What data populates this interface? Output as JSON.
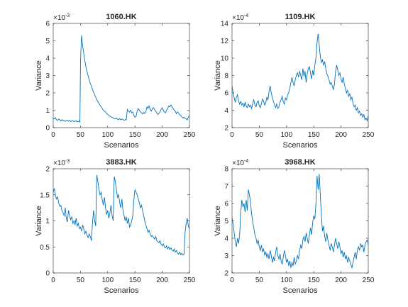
{
  "chart_data": [
    {
      "type": "line",
      "title": "1060.HK",
      "xlabel": "Scenarios",
      "ylabel": "Variance",
      "exponent": "-3",
      "xlim": [
        0,
        250
      ],
      "ylim": [
        0,
        6
      ],
      "xticks": [
        0,
        50,
        100,
        150,
        200,
        250
      ],
      "yticks": [
        0,
        1,
        2,
        3,
        4,
        5,
        6
      ],
      "color": "#0072BD",
      "x": [
        0,
        2,
        4,
        6,
        8,
        10,
        12,
        14,
        16,
        18,
        20,
        22,
        24,
        26,
        28,
        30,
        32,
        34,
        36,
        38,
        40,
        42,
        44,
        46,
        48,
        49,
        50,
        51,
        52,
        53,
        54,
        55,
        56,
        57,
        58,
        59,
        60,
        62,
        64,
        66,
        68,
        70,
        72,
        74,
        76,
        78,
        80,
        82,
        84,
        86,
        88,
        90,
        92,
        94,
        96,
        98,
        100,
        102,
        104,
        106,
        108,
        110,
        112,
        114,
        116,
        118,
        120,
        122,
        124,
        126,
        128,
        130,
        132,
        134,
        136,
        138,
        140,
        142,
        144,
        146,
        148,
        150,
        152,
        154,
        156,
        158,
        160,
        162,
        164,
        166,
        168,
        170,
        172,
        174,
        176,
        178,
        180,
        182,
        184,
        186,
        188,
        190,
        192,
        194,
        196,
        198,
        200,
        202,
        204,
        206,
        208,
        210,
        212,
        214,
        216,
        218,
        220,
        222,
        224,
        226,
        228,
        230,
        232,
        234,
        236,
        238,
        240,
        242,
        244,
        246,
        248,
        250
      ],
      "values": [
        0.55,
        0.5,
        0.58,
        0.45,
        0.42,
        0.5,
        0.44,
        0.38,
        0.46,
        0.4,
        0.42,
        0.36,
        0.4,
        0.43,
        0.37,
        0.41,
        0.35,
        0.38,
        0.4,
        0.34,
        0.37,
        0.4,
        0.33,
        0.36,
        0.38,
        0.3,
        3.6,
        4.6,
        5.3,
        5.0,
        4.7,
        4.5,
        4.3,
        4.05,
        3.85,
        3.7,
        3.5,
        3.2,
        3.0,
        2.75,
        2.55,
        2.4,
        2.2,
        2.05,
        1.9,
        1.75,
        1.6,
        1.5,
        1.38,
        1.28,
        1.2,
        1.1,
        1.0,
        0.95,
        0.9,
        0.82,
        0.75,
        0.72,
        0.65,
        0.62,
        0.6,
        0.55,
        0.52,
        0.5,
        0.55,
        0.48,
        0.46,
        0.52,
        0.45,
        0.5,
        0.47,
        0.42,
        0.46,
        0.44,
        1.05,
        0.95,
        0.9,
        1.0,
        0.85,
        0.9,
        0.7,
        0.6,
        0.65,
        0.95,
        1.1,
        1.0,
        0.92,
        0.85,
        0.78,
        0.88,
        0.82,
        0.9,
        1.2,
        1.1,
        1.25,
        1.05,
        0.95,
        1.1,
        1.15,
        1.05,
        0.95,
        0.85,
        0.75,
        0.82,
        0.9,
        1.05,
        1.15,
        1.0,
        0.9,
        0.85,
        1.0,
        1.1,
        1.25,
        1.2,
        1.3,
        1.2,
        1.1,
        1.0,
        0.95,
        0.8,
        0.9,
        0.85,
        0.75,
        0.7,
        0.62,
        0.55,
        0.6,
        0.52,
        0.5,
        0.45,
        0.6,
        0.7
      ]
    },
    {
      "type": "line",
      "title": "1109.HK",
      "xlabel": "Scenarios",
      "ylabel": "Variance",
      "exponent": "-4",
      "xlim": [
        0,
        250
      ],
      "ylim": [
        2,
        14
      ],
      "xticks": [
        0,
        50,
        100,
        150,
        200,
        250
      ],
      "yticks": [
        2,
        4,
        6,
        8,
        10,
        12,
        14
      ],
      "color": "#0072BD",
      "x": [
        0,
        2,
        4,
        6,
        8,
        10,
        12,
        14,
        16,
        18,
        20,
        22,
        24,
        26,
        28,
        30,
        32,
        34,
        36,
        38,
        40,
        42,
        44,
        46,
        48,
        50,
        52,
        54,
        56,
        58,
        60,
        62,
        64,
        66,
        68,
        70,
        72,
        74,
        76,
        78,
        80,
        82,
        84,
        86,
        88,
        90,
        92,
        94,
        96,
        98,
        100,
        102,
        104,
        106,
        108,
        110,
        112,
        114,
        116,
        118,
        120,
        122,
        124,
        126,
        128,
        130,
        132,
        134,
        136,
        138,
        140,
        142,
        144,
        146,
        148,
        150,
        152,
        154,
        156,
        158,
        160,
        162,
        164,
        166,
        168,
        170,
        172,
        174,
        176,
        178,
        180,
        182,
        184,
        186,
        188,
        190,
        192,
        194,
        196,
        198,
        200,
        202,
        204,
        206,
        208,
        210,
        212,
        214,
        216,
        218,
        220,
        222,
        224,
        226,
        228,
        230,
        232,
        234,
        236,
        238,
        240,
        242,
        244,
        246,
        248,
        250
      ],
      "values": [
        6.8,
        6.0,
        5.4,
        4.9,
        5.5,
        5.8,
        5.1,
        4.7,
        5.0,
        4.6,
        4.8,
        4.4,
        4.9,
        4.5,
        4.3,
        4.7,
        4.4,
        4.6,
        4.2,
        4.8,
        5.2,
        4.6,
        4.4,
        4.9,
        5.1,
        4.5,
        4.3,
        4.8,
        5.3,
        5.0,
        4.6,
        4.9,
        5.5,
        5.2,
        6.2,
        6.8,
        6.0,
        5.5,
        5.0,
        4.6,
        4.3,
        4.7,
        4.2,
        4.4,
        4.9,
        5.2,
        5.6,
        5.0,
        4.7,
        5.4,
        5.2,
        5.8,
        6.0,
        6.5,
        7.2,
        7.8,
        7.2,
        6.8,
        7.5,
        8.0,
        8.3,
        7.8,
        8.5,
        8.0,
        7.5,
        8.8,
        7.9,
        8.5,
        7.2,
        8.2,
        8.8,
        9.0,
        8.3,
        7.6,
        8.6,
        8.0,
        9.2,
        10.0,
        11.8,
        12.8,
        11.5,
        10.2,
        9.5,
        9.8,
        9.2,
        9.6,
        8.8,
        8.2,
        7.9,
        7.5,
        7.0,
        7.2,
        6.8,
        6.4,
        7.0,
        8.5,
        9.2,
        8.6,
        8.0,
        8.3,
        7.6,
        7.2,
        7.8,
        7.0,
        6.6,
        6.0,
        6.3,
        5.6,
        5.9,
        5.2,
        5.5,
        4.8,
        4.4,
        4.6,
        4.0,
        4.3,
        3.7,
        3.9,
        3.4,
        3.6,
        3.2,
        3.5,
        2.9,
        3.1,
        2.8,
        3.4
      ]
    },
    {
      "type": "line",
      "title": "3883.HK",
      "xlabel": "Scenarios",
      "ylabel": "Variance",
      "exponent": "-3",
      "xlim": [
        0,
        250
      ],
      "ylim": [
        0,
        2
      ],
      "xticks": [
        0,
        50,
        100,
        150,
        200,
        250
      ],
      "yticks": [
        0,
        0.5,
        1,
        1.5,
        2
      ],
      "color": "#0072BD",
      "x": [
        0,
        2,
        4,
        6,
        8,
        10,
        12,
        14,
        16,
        18,
        20,
        22,
        24,
        26,
        28,
        30,
        32,
        34,
        36,
        38,
        40,
        42,
        44,
        46,
        48,
        50,
        52,
        54,
        56,
        58,
        60,
        62,
        64,
        66,
        68,
        70,
        72,
        74,
        76,
        78,
        80,
        82,
        84,
        86,
        88,
        90,
        92,
        94,
        96,
        98,
        100,
        102,
        104,
        106,
        108,
        110,
        112,
        114,
        116,
        118,
        120,
        122,
        124,
        126,
        128,
        130,
        132,
        134,
        136,
        138,
        140,
        142,
        144,
        146,
        148,
        150,
        152,
        154,
        156,
        158,
        160,
        162,
        164,
        166,
        168,
        170,
        172,
        174,
        176,
        178,
        180,
        182,
        184,
        186,
        188,
        190,
        192,
        194,
        196,
        198,
        200,
        202,
        204,
        206,
        208,
        210,
        212,
        214,
        216,
        218,
        220,
        222,
        224,
        226,
        228,
        230,
        232,
        234,
        236,
        238,
        240,
        242,
        244,
        246,
        248,
        250
      ],
      "values": [
        1.55,
        1.62,
        1.5,
        1.42,
        1.46,
        1.35,
        1.28,
        1.3,
        1.2,
        1.15,
        1.1,
        1.25,
        1.05,
        0.98,
        1.2,
        1.1,
        1.02,
        1.08,
        0.95,
        1.0,
        0.92,
        1.05,
        0.9,
        0.95,
        0.85,
        0.88,
        0.8,
        0.92,
        0.85,
        0.75,
        0.8,
        0.72,
        0.68,
        0.75,
        0.7,
        0.62,
        0.95,
        1.2,
        1.0,
        0.9,
        1.88,
        1.75,
        1.6,
        1.5,
        1.55,
        1.4,
        1.3,
        1.45,
        1.25,
        1.12,
        1.2,
        1.05,
        1.15,
        1.3,
        1.1,
        1.0,
        1.85,
        1.75,
        1.6,
        1.45,
        1.5,
        1.35,
        1.25,
        1.42,
        1.2,
        1.1,
        1.0,
        1.08,
        0.95,
        1.05,
        0.88,
        0.92,
        1.0,
        1.1,
        1.4,
        1.6,
        1.55,
        1.5,
        1.42,
        1.35,
        1.25,
        1.3,
        1.2,
        1.1,
        1.0,
        0.92,
        0.85,
        0.78,
        0.82,
        0.75,
        0.7,
        0.72,
        0.68,
        0.65,
        0.7,
        0.62,
        0.6,
        0.58,
        0.62,
        0.55,
        0.52,
        0.56,
        0.5,
        0.48,
        0.52,
        0.46,
        0.5,
        0.45,
        0.48,
        0.44,
        0.42,
        0.46,
        0.4,
        0.43,
        0.38,
        0.36,
        0.4,
        0.35,
        0.38,
        0.34,
        0.36,
        0.78,
        0.95,
        1.05,
        0.9,
        0.85
      ]
    },
    {
      "type": "line",
      "title": "3968.HK",
      "xlabel": "Scenarios",
      "ylabel": "Variance",
      "exponent": "-4",
      "xlim": [
        0,
        250
      ],
      "ylim": [
        2,
        8
      ],
      "xticks": [
        0,
        50,
        100,
        150,
        200,
        250
      ],
      "yticks": [
        2,
        3,
        4,
        5,
        6,
        7,
        8
      ],
      "color": "#0072BD",
      "x": [
        0,
        2,
        4,
        6,
        8,
        10,
        12,
        14,
        16,
        18,
        20,
        22,
        24,
        26,
        28,
        30,
        32,
        34,
        36,
        38,
        40,
        42,
        44,
        46,
        48,
        50,
        52,
        54,
        56,
        58,
        60,
        62,
        64,
        66,
        68,
        70,
        72,
        74,
        76,
        78,
        80,
        82,
        84,
        86,
        88,
        90,
        92,
        94,
        96,
        98,
        100,
        102,
        104,
        106,
        108,
        110,
        112,
        114,
        116,
        118,
        120,
        122,
        124,
        126,
        128,
        130,
        132,
        134,
        136,
        138,
        140,
        142,
        144,
        146,
        148,
        150,
        152,
        154,
        156,
        158,
        160,
        162,
        164,
        166,
        168,
        170,
        172,
        174,
        176,
        178,
        180,
        182,
        184,
        186,
        188,
        190,
        192,
        194,
        196,
        198,
        200,
        202,
        204,
        206,
        208,
        210,
        212,
        214,
        216,
        218,
        220,
        222,
        224,
        226,
        228,
        230,
        232,
        234,
        236,
        238,
        240,
        242,
        244,
        246,
        248,
        250
      ],
      "values": [
        5.2,
        4.8,
        4.3,
        3.8,
        3.5,
        4.0,
        3.7,
        4.2,
        5.5,
        6.2,
        5.8,
        6.0,
        5.5,
        6.2,
        5.6,
        6.8,
        6.5,
        6.0,
        5.4,
        4.9,
        4.6,
        4.2,
        4.0,
        3.7,
        3.9,
        3.5,
        3.3,
        3.6,
        3.2,
        3.4,
        3.0,
        3.2,
        2.9,
        3.1,
        2.8,
        3.3,
        3.0,
        2.6,
        2.9,
        2.7,
        3.2,
        3.5,
        3.0,
        2.8,
        3.1,
        2.7,
        2.5,
        2.9,
        3.3,
        3.0,
        2.6,
        2.8,
        2.4,
        2.7,
        2.3,
        2.6,
        2.4,
        2.9,
        2.5,
        2.7,
        3.0,
        2.8,
        3.3,
        3.6,
        3.4,
        3.9,
        4.1,
        3.8,
        4.3,
        4.0,
        3.7,
        4.2,
        4.6,
        4.2,
        4.9,
        5.3,
        5.1,
        6.0,
        7.6,
        6.8,
        7.7,
        6.5,
        5.3,
        4.4,
        4.7,
        4.1,
        3.8,
        4.3,
        3.9,
        3.6,
        3.3,
        3.7,
        3.5,
        3.2,
        3.6,
        4.0,
        3.7,
        3.4,
        3.8,
        3.5,
        3.1,
        3.3,
        2.9,
        3.2,
        2.8,
        3.0,
        2.6,
        2.9,
        2.7,
        2.5,
        2.3,
        2.6,
        2.9,
        3.2,
        2.8,
        3.3,
        3.5,
        3.3,
        3.7,
        3.5,
        3.6,
        3.2,
        3.6,
        3.8,
        3.9,
        3.6
      ]
    }
  ]
}
